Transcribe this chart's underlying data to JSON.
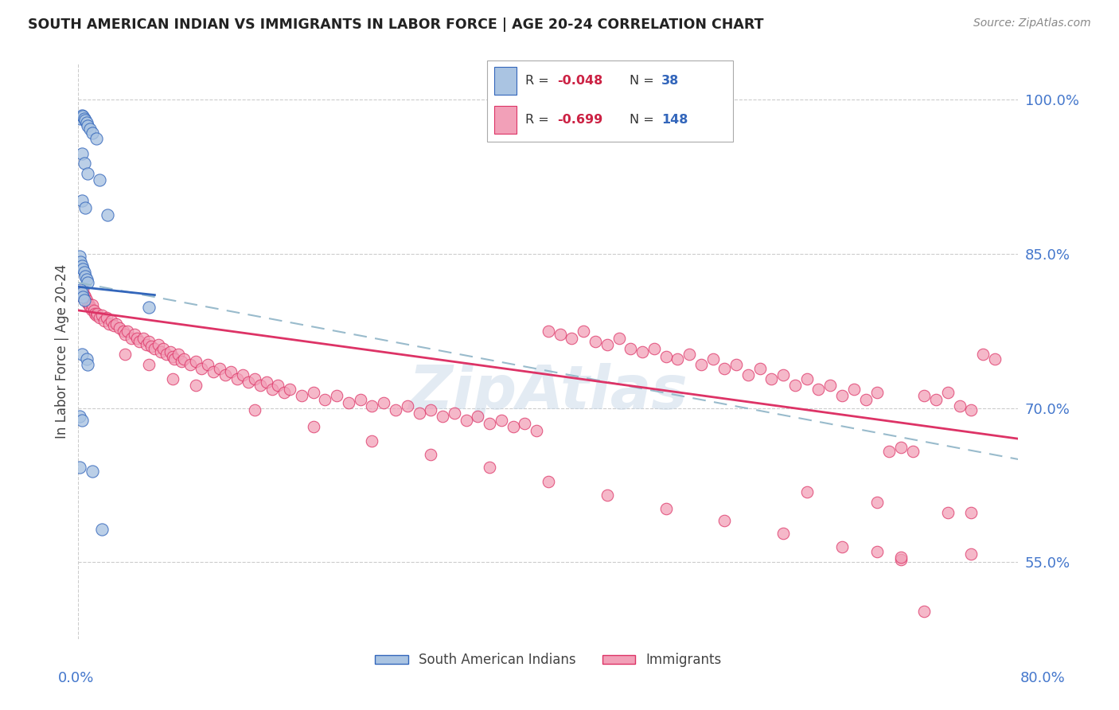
{
  "title": "SOUTH AMERICAN INDIAN VS IMMIGRANTS IN LABOR FORCE | AGE 20-24 CORRELATION CHART",
  "source": "Source: ZipAtlas.com",
  "ylabel": "In Labor Force | Age 20-24",
  "legend_label1": "South American Indians",
  "legend_label2": "Immigrants",
  "blue_color": "#aac4e2",
  "pink_color": "#f2a0b8",
  "blue_line_color": "#3366bb",
  "pink_line_color": "#dd3366",
  "dashed_line_color": "#99bbcc",
  "xlim": [
    0.0,
    0.8
  ],
  "ylim": [
    0.475,
    1.035
  ],
  "ytick_values": [
    1.0,
    0.85,
    0.7,
    0.55
  ],
  "ytick_labels": [
    "100.0%",
    "85.0%",
    "70.0%",
    "55.0%"
  ],
  "grid_color": "#cccccc",
  "bg_color": "#ffffff",
  "blue_scatter": [
    [
      0.002,
      0.982
    ],
    [
      0.003,
      0.985
    ],
    [
      0.004,
      0.984
    ],
    [
      0.005,
      0.982
    ],
    [
      0.006,
      0.98
    ],
    [
      0.007,
      0.978
    ],
    [
      0.008,
      0.975
    ],
    [
      0.01,
      0.972
    ],
    [
      0.012,
      0.968
    ],
    [
      0.015,
      0.962
    ],
    [
      0.003,
      0.948
    ],
    [
      0.005,
      0.938
    ],
    [
      0.008,
      0.928
    ],
    [
      0.018,
      0.922
    ],
    [
      0.003,
      0.902
    ],
    [
      0.006,
      0.895
    ],
    [
      0.025,
      0.888
    ],
    [
      0.001,
      0.848
    ],
    [
      0.002,
      0.842
    ],
    [
      0.003,
      0.838
    ],
    [
      0.004,
      0.835
    ],
    [
      0.005,
      0.832
    ],
    [
      0.006,
      0.828
    ],
    [
      0.007,
      0.825
    ],
    [
      0.008,
      0.822
    ],
    [
      0.002,
      0.815
    ],
    [
      0.003,
      0.812
    ],
    [
      0.004,
      0.808
    ],
    [
      0.005,
      0.805
    ],
    [
      0.06,
      0.798
    ],
    [
      0.003,
      0.752
    ],
    [
      0.007,
      0.748
    ],
    [
      0.008,
      0.742
    ],
    [
      0.001,
      0.692
    ],
    [
      0.003,
      0.688
    ],
    [
      0.001,
      0.642
    ],
    [
      0.012,
      0.638
    ],
    [
      0.02,
      0.582
    ]
  ],
  "pink_scatter": [
    [
      0.002,
      0.812
    ],
    [
      0.003,
      0.808
    ],
    [
      0.004,
      0.815
    ],
    [
      0.005,
      0.81
    ],
    [
      0.006,
      0.808
    ],
    [
      0.007,
      0.805
    ],
    [
      0.008,
      0.802
    ],
    [
      0.009,
      0.8
    ],
    [
      0.01,
      0.798
    ],
    [
      0.011,
      0.796
    ],
    [
      0.012,
      0.8
    ],
    [
      0.013,
      0.795
    ],
    [
      0.014,
      0.792
    ],
    [
      0.015,
      0.79
    ],
    [
      0.016,
      0.792
    ],
    [
      0.018,
      0.788
    ],
    [
      0.02,
      0.79
    ],
    [
      0.022,
      0.785
    ],
    [
      0.024,
      0.788
    ],
    [
      0.026,
      0.782
    ],
    [
      0.028,
      0.785
    ],
    [
      0.03,
      0.78
    ],
    [
      0.032,
      0.782
    ],
    [
      0.035,
      0.778
    ],
    [
      0.038,
      0.775
    ],
    [
      0.04,
      0.772
    ],
    [
      0.042,
      0.775
    ],
    [
      0.045,
      0.768
    ],
    [
      0.048,
      0.772
    ],
    [
      0.05,
      0.768
    ],
    [
      0.052,
      0.765
    ],
    [
      0.055,
      0.768
    ],
    [
      0.058,
      0.762
    ],
    [
      0.06,
      0.765
    ],
    [
      0.062,
      0.76
    ],
    [
      0.065,
      0.758
    ],
    [
      0.068,
      0.762
    ],
    [
      0.07,
      0.755
    ],
    [
      0.072,
      0.758
    ],
    [
      0.075,
      0.752
    ],
    [
      0.078,
      0.755
    ],
    [
      0.08,
      0.75
    ],
    [
      0.082,
      0.748
    ],
    [
      0.085,
      0.752
    ],
    [
      0.088,
      0.745
    ],
    [
      0.09,
      0.748
    ],
    [
      0.095,
      0.742
    ],
    [
      0.1,
      0.745
    ],
    [
      0.105,
      0.738
    ],
    [
      0.11,
      0.742
    ],
    [
      0.115,
      0.735
    ],
    [
      0.12,
      0.738
    ],
    [
      0.125,
      0.732
    ],
    [
      0.13,
      0.735
    ],
    [
      0.135,
      0.728
    ],
    [
      0.14,
      0.732
    ],
    [
      0.145,
      0.725
    ],
    [
      0.15,
      0.728
    ],
    [
      0.155,
      0.722
    ],
    [
      0.16,
      0.725
    ],
    [
      0.165,
      0.718
    ],
    [
      0.17,
      0.722
    ],
    [
      0.175,
      0.715
    ],
    [
      0.18,
      0.718
    ],
    [
      0.19,
      0.712
    ],
    [
      0.2,
      0.715
    ],
    [
      0.21,
      0.708
    ],
    [
      0.22,
      0.712
    ],
    [
      0.23,
      0.705
    ],
    [
      0.24,
      0.708
    ],
    [
      0.25,
      0.702
    ],
    [
      0.26,
      0.705
    ],
    [
      0.27,
      0.698
    ],
    [
      0.28,
      0.702
    ],
    [
      0.29,
      0.695
    ],
    [
      0.3,
      0.698
    ],
    [
      0.31,
      0.692
    ],
    [
      0.32,
      0.695
    ],
    [
      0.33,
      0.688
    ],
    [
      0.34,
      0.692
    ],
    [
      0.35,
      0.685
    ],
    [
      0.36,
      0.688
    ],
    [
      0.37,
      0.682
    ],
    [
      0.38,
      0.685
    ],
    [
      0.39,
      0.678
    ],
    [
      0.4,
      0.775
    ],
    [
      0.41,
      0.772
    ],
    [
      0.42,
      0.768
    ],
    [
      0.43,
      0.775
    ],
    [
      0.44,
      0.765
    ],
    [
      0.45,
      0.762
    ],
    [
      0.46,
      0.768
    ],
    [
      0.47,
      0.758
    ],
    [
      0.48,
      0.755
    ],
    [
      0.49,
      0.758
    ],
    [
      0.5,
      0.75
    ],
    [
      0.51,
      0.748
    ],
    [
      0.52,
      0.752
    ],
    [
      0.53,
      0.742
    ],
    [
      0.54,
      0.748
    ],
    [
      0.55,
      0.738
    ],
    [
      0.56,
      0.742
    ],
    [
      0.57,
      0.732
    ],
    [
      0.58,
      0.738
    ],
    [
      0.59,
      0.728
    ],
    [
      0.6,
      0.732
    ],
    [
      0.61,
      0.722
    ],
    [
      0.62,
      0.728
    ],
    [
      0.63,
      0.718
    ],
    [
      0.64,
      0.722
    ],
    [
      0.65,
      0.712
    ],
    [
      0.66,
      0.718
    ],
    [
      0.67,
      0.708
    ],
    [
      0.68,
      0.715
    ],
    [
      0.69,
      0.658
    ],
    [
      0.7,
      0.662
    ],
    [
      0.71,
      0.658
    ],
    [
      0.72,
      0.712
    ],
    [
      0.73,
      0.708
    ],
    [
      0.74,
      0.715
    ],
    [
      0.75,
      0.702
    ],
    [
      0.76,
      0.698
    ],
    [
      0.77,
      0.752
    ],
    [
      0.78,
      0.748
    ],
    [
      0.04,
      0.752
    ],
    [
      0.06,
      0.742
    ],
    [
      0.08,
      0.728
    ],
    [
      0.1,
      0.722
    ],
    [
      0.15,
      0.698
    ],
    [
      0.2,
      0.682
    ],
    [
      0.25,
      0.668
    ],
    [
      0.3,
      0.655
    ],
    [
      0.35,
      0.642
    ],
    [
      0.4,
      0.628
    ],
    [
      0.45,
      0.615
    ],
    [
      0.5,
      0.602
    ],
    [
      0.55,
      0.59
    ],
    [
      0.6,
      0.578
    ],
    [
      0.65,
      0.565
    ],
    [
      0.7,
      0.552
    ],
    [
      0.72,
      0.502
    ],
    [
      0.62,
      0.618
    ],
    [
      0.68,
      0.608
    ],
    [
      0.74,
      0.598
    ],
    [
      0.76,
      0.598
    ],
    [
      0.68,
      0.56
    ],
    [
      0.7,
      0.555
    ],
    [
      0.76,
      0.558
    ]
  ],
  "blue_line_x": [
    0.0,
    0.065
  ],
  "blue_line_y": [
    0.818,
    0.81
  ],
  "pink_line_x": [
    0.0,
    0.8
  ],
  "pink_line_y": [
    0.795,
    0.67
  ],
  "dashed_line_x": [
    0.0,
    0.8
  ],
  "dashed_line_y": [
    0.822,
    0.65
  ]
}
